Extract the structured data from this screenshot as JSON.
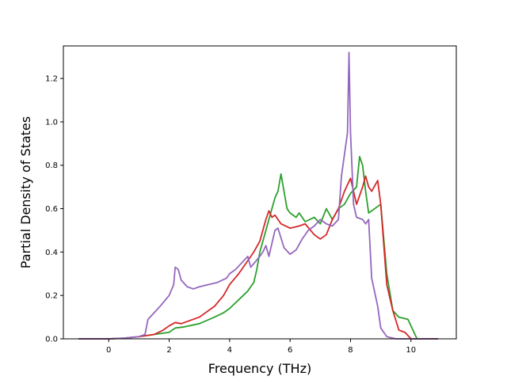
{
  "chart_data": {
    "type": "line",
    "title": "",
    "xlabel": "Frequency (THz)",
    "ylabel": "Partial Density of States",
    "xlim": [
      -1.5,
      11.5
    ],
    "ylim": [
      0.0,
      1.35
    ],
    "x_ticks": [
      0,
      2,
      4,
      6,
      8,
      10
    ],
    "y_ticks": [
      0.0,
      0.2,
      0.4,
      0.6,
      0.8,
      1.0,
      1.2
    ],
    "x_tick_labels": [
      "0",
      "2",
      "4",
      "6",
      "8",
      "10"
    ],
    "y_tick_labels": [
      "0.0",
      "0.2",
      "0.4",
      "0.6",
      "0.8",
      "1.0",
      "1.2"
    ],
    "grid": false,
    "legend": "none",
    "series": [
      {
        "color": "#2ca02c",
        "x": [
          -1.0,
          0.0,
          0.5,
          1.0,
          1.5,
          2.0,
          2.2,
          2.5,
          3.0,
          3.5,
          3.8,
          4.0,
          4.3,
          4.6,
          4.8,
          4.9,
          5.0,
          5.2,
          5.4,
          5.5,
          5.6,
          5.7,
          5.8,
          5.9,
          6.0,
          6.2,
          6.3,
          6.5,
          6.8,
          7.0,
          7.2,
          7.4,
          7.6,
          7.8,
          8.0,
          8.2,
          8.3,
          8.4,
          8.5,
          8.6,
          8.8,
          9.0,
          9.2,
          9.4,
          9.6,
          9.9,
          10.2,
          10.5,
          10.9
        ],
        "y": [
          0.0,
          0.0,
          0.003,
          0.01,
          0.02,
          0.03,
          0.05,
          0.055,
          0.07,
          0.1,
          0.12,
          0.14,
          0.18,
          0.22,
          0.26,
          0.32,
          0.4,
          0.5,
          0.6,
          0.65,
          0.68,
          0.76,
          0.68,
          0.6,
          0.58,
          0.56,
          0.58,
          0.54,
          0.56,
          0.53,
          0.6,
          0.55,
          0.6,
          0.62,
          0.67,
          0.7,
          0.84,
          0.8,
          0.68,
          0.58,
          0.6,
          0.62,
          0.3,
          0.13,
          0.1,
          0.09,
          0.0,
          0.0,
          0.0
        ]
      },
      {
        "color": "#d62728",
        "x": [
          -1.0,
          0.0,
          0.5,
          1.0,
          1.5,
          1.8,
          2.0,
          2.2,
          2.4,
          2.6,
          3.0,
          3.5,
          3.8,
          4.0,
          4.3,
          4.6,
          4.8,
          5.0,
          5.2,
          5.3,
          5.4,
          5.5,
          5.7,
          6.0,
          6.3,
          6.5,
          6.8,
          7.0,
          7.2,
          7.4,
          7.6,
          7.8,
          8.0,
          8.2,
          8.4,
          8.5,
          8.6,
          8.7,
          8.9,
          9.0,
          9.2,
          9.4,
          9.6,
          9.8,
          10.0,
          10.2,
          10.5,
          10.9
        ],
        "y": [
          0.0,
          0.0,
          0.003,
          0.01,
          0.02,
          0.04,
          0.06,
          0.075,
          0.07,
          0.08,
          0.1,
          0.15,
          0.2,
          0.25,
          0.3,
          0.36,
          0.4,
          0.45,
          0.55,
          0.59,
          0.56,
          0.57,
          0.53,
          0.51,
          0.52,
          0.53,
          0.48,
          0.46,
          0.48,
          0.55,
          0.6,
          0.68,
          0.74,
          0.62,
          0.7,
          0.75,
          0.7,
          0.68,
          0.73,
          0.62,
          0.25,
          0.13,
          0.04,
          0.03,
          0.0,
          0.0,
          0.0,
          0.0
        ]
      },
      {
        "color": "#9467bd",
        "x": [
          -1.0,
          0.0,
          0.5,
          1.0,
          1.2,
          1.3,
          1.5,
          1.7,
          2.0,
          2.15,
          2.2,
          2.3,
          2.4,
          2.6,
          2.8,
          3.0,
          3.3,
          3.6,
          3.9,
          4.0,
          4.2,
          4.4,
          4.6,
          4.7,
          5.0,
          5.1,
          5.2,
          5.3,
          5.5,
          5.6,
          5.8,
          6.0,
          6.2,
          6.4,
          6.6,
          6.8,
          7.0,
          7.2,
          7.4,
          7.6,
          7.7,
          7.8,
          7.9,
          7.95,
          8.0,
          8.1,
          8.2,
          8.4,
          8.5,
          8.6,
          8.7,
          8.9,
          9.0,
          9.2,
          9.5,
          10.0,
          10.5,
          10.9
        ],
        "y": [
          0.0,
          0.0,
          0.003,
          0.01,
          0.02,
          0.09,
          0.12,
          0.15,
          0.2,
          0.25,
          0.33,
          0.32,
          0.27,
          0.24,
          0.23,
          0.24,
          0.25,
          0.26,
          0.28,
          0.3,
          0.32,
          0.35,
          0.38,
          0.33,
          0.38,
          0.4,
          0.43,
          0.38,
          0.5,
          0.51,
          0.42,
          0.39,
          0.41,
          0.46,
          0.5,
          0.52,
          0.55,
          0.53,
          0.52,
          0.55,
          0.75,
          0.85,
          0.95,
          1.32,
          0.95,
          0.62,
          0.56,
          0.55,
          0.53,
          0.55,
          0.28,
          0.15,
          0.05,
          0.01,
          0.0,
          0.0,
          0.0,
          0.0
        ]
      }
    ]
  }
}
